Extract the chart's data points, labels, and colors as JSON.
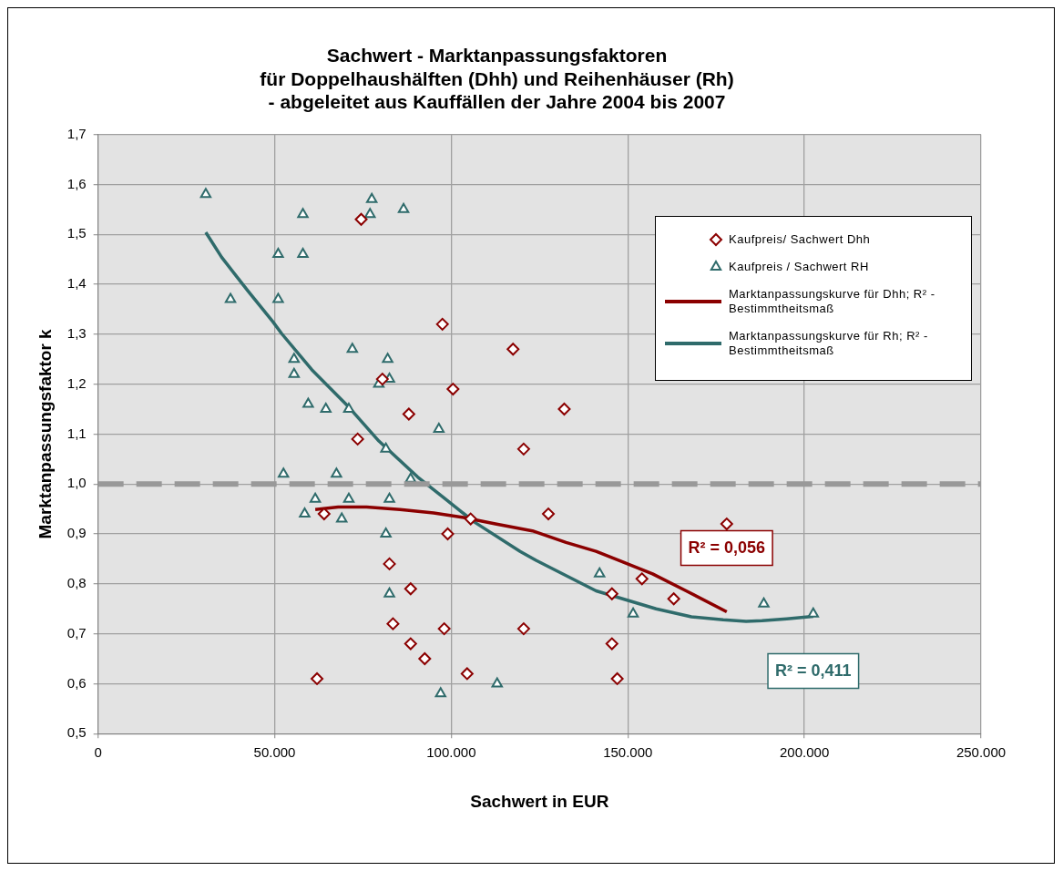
{
  "chart_data": {
    "type": "scatter",
    "title": "Sachwert - Marktanpassungsfaktoren\nfür Doppelhaushälften (Dhh) und Reihenhäuser (Rh)\n- abgeleitet aus Kauffällen der Jahre 2004 bis 2007",
    "xlabel": "Sachwert in EUR",
    "ylabel": "Marktanpassungsfaktor k",
    "xlim": [
      0,
      250000
    ],
    "xticks": [
      0,
      {
        "value": 50000,
        "label": "50.000"
      },
      {
        "value": 100000,
        "label": "100.000"
      },
      {
        "value": 150000,
        "label": "150.000"
      },
      {
        "value": 200000,
        "label": "200.000"
      },
      {
        "value": 250000,
        "label": "250.000"
      }
    ],
    "ylim": [
      0.5,
      1.7
    ],
    "yticks": [
      {
        "value": 0.5,
        "label": "0,5"
      },
      {
        "value": 0.6,
        "label": "0,6"
      },
      {
        "value": 0.7,
        "label": "0,7"
      },
      {
        "value": 0.8,
        "label": "0,8"
      },
      {
        "value": 0.9,
        "label": "0,9"
      },
      {
        "value": 1,
        "label": "1,0"
      },
      {
        "value": 1.1,
        "label": "1,1"
      },
      {
        "value": 1.2,
        "label": "1,2"
      },
      {
        "value": 1.3,
        "label": "1,3"
      },
      {
        "value": 1.4,
        "label": "1,4"
      },
      {
        "value": 1.5,
        "label": "1,5"
      },
      {
        "value": 1.6,
        "label": "1,6"
      },
      {
        "value": 1.7,
        "label": "1,7"
      }
    ],
    "grid": true,
    "legend": "top right",
    "series": [
      {
        "name": "Kaufpreis/ Sachwert Dhh",
        "marker": "diamond",
        "color": "#8b0000",
        "x": [
          74500,
          97500,
          117500,
          80500,
          100500,
          132000,
          88000,
          73500,
          120500,
          127500,
          64000,
          105500,
          178000,
          99000,
          154000,
          82500,
          145500,
          163000,
          88500,
          83500,
          98000,
          120500,
          88500,
          145500,
          92500,
          104500,
          62000,
          147000
        ],
        "values": [
          1.53,
          1.32,
          1.27,
          1.21,
          1.19,
          1.15,
          1.14,
          1.09,
          1.07,
          0.94,
          0.94,
          0.93,
          0.92,
          0.9,
          0.81,
          0.84,
          0.78,
          0.77,
          0.79,
          0.72,
          0.71,
          0.71,
          0.68,
          0.68,
          0.65,
          0.62,
          0.61,
          0.61
        ]
      },
      {
        "name": "Kaufpreis / Sachwert RH",
        "marker": "triangle",
        "color": "#2f6b6b",
        "x": [
          30500,
          58000,
          77500,
          77000,
          86500,
          51000,
          58000,
          37500,
          51000,
          72000,
          55500,
          82000,
          55500,
          82500,
          79500,
          59500,
          64500,
          71000,
          96500,
          81500,
          52500,
          67500,
          88500,
          61500,
          71000,
          82500,
          58500,
          69000,
          81500,
          82500,
          97000,
          113000,
          142000,
          151500,
          188500,
          202500
        ],
        "values": [
          1.58,
          1.54,
          1.57,
          1.54,
          1.55,
          1.46,
          1.46,
          1.37,
          1.37,
          1.27,
          1.25,
          1.25,
          1.22,
          1.21,
          1.2,
          1.16,
          1.15,
          1.15,
          1.11,
          1.07,
          1.02,
          1.02,
          1.01,
          0.97,
          0.97,
          0.97,
          0.94,
          0.93,
          0.9,
          0.78,
          0.58,
          0.6,
          0.82,
          0.74,
          0.76,
          0.74
        ]
      },
      {
        "name": "Marktanpassungskurve für Dhh; R² - Bestimmtheitsmaß",
        "type": "line",
        "marker": "none",
        "color": "#8b0000",
        "x": [
          61500,
          68000,
          76000,
          85500,
          95000,
          103500,
          112500,
          123000,
          132500,
          141000,
          147500,
          157000,
          166500,
          178000
        ],
        "values": [
          0.949,
          0.954,
          0.954,
          0.949,
          0.942,
          0.933,
          0.92,
          0.906,
          0.883,
          0.865,
          0.847,
          0.82,
          0.786,
          0.744
        ]
      },
      {
        "name": "Marktanpassungskurve für Rh;  R² - Bestimmtheitsmaß",
        "type": "line",
        "marker": "none",
        "color": "#2f6b6b",
        "x": [
          30500,
          35000,
          42500,
          49500,
          52000,
          60500,
          71000,
          79500,
          90500,
          98000,
          106500,
          119500,
          124000,
          141000,
          158000,
          168000,
          177000,
          183500,
          188000,
          195000,
          202500
        ],
        "values": [
          1.504,
          1.454,
          1.386,
          1.325,
          1.301,
          1.229,
          1.154,
          1.086,
          1.014,
          0.972,
          0.924,
          0.865,
          0.847,
          0.786,
          0.75,
          0.734,
          0.728,
          0.725,
          0.726,
          0.73,
          0.735
        ]
      }
    ],
    "ref_lines": [
      {
        "axis": "y",
        "value": 1,
        "color": "#999999",
        "line_style": "dashed"
      }
    ],
    "annotations": [
      "R² = 0,056",
      "R² = 0,411"
    ]
  }
}
